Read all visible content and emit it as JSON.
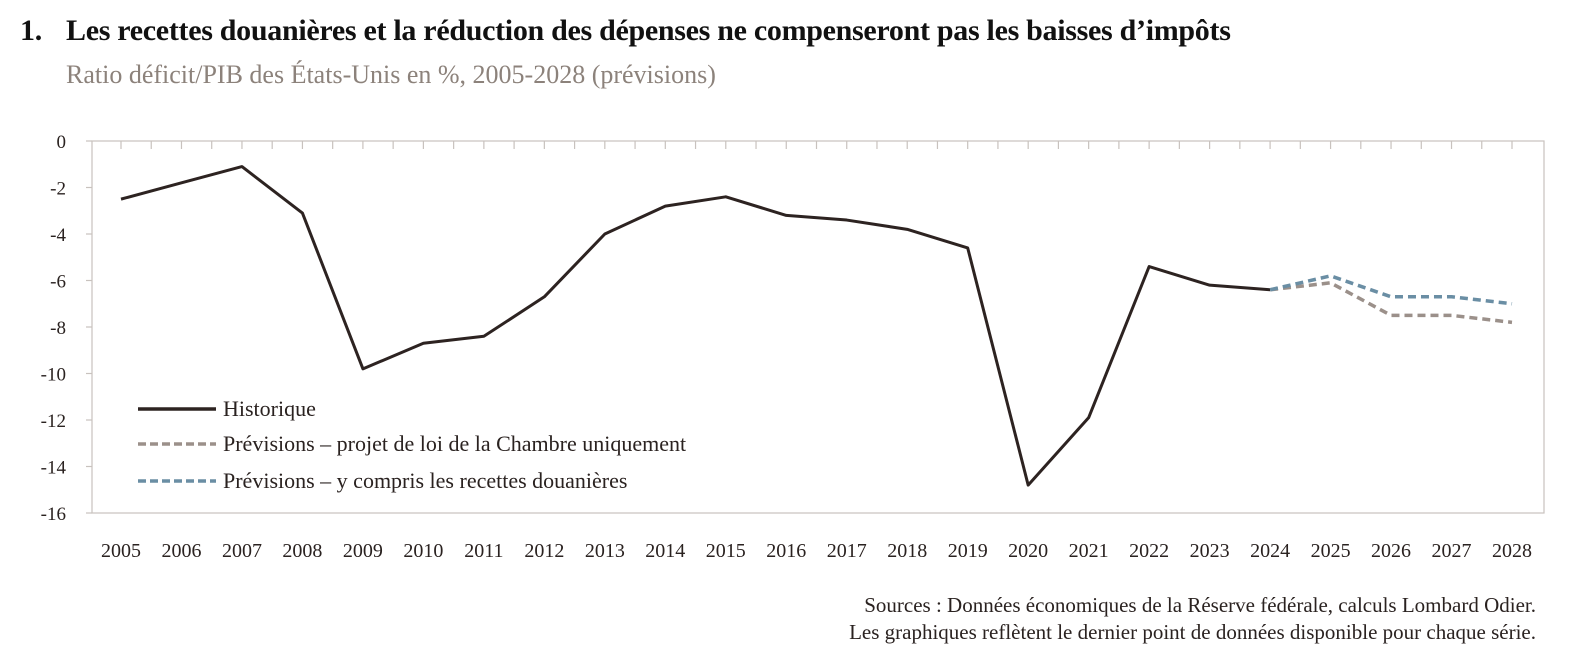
{
  "header": {
    "number": "1.",
    "title": "Les recettes douanières et la réduction des dépenses ne compenseront pas les baisses d’impôts",
    "subtitle": "Ratio déficit/PIB des États-Unis en %, 2005-2028 (prévisions)"
  },
  "footnote": {
    "line1": "Sources : Données économiques de la Réserve fédérale, calculs Lombard Odier.",
    "line2": "Les graphiques reflètent le dernier point de données disponible pour chaque série."
  },
  "chart_data": {
    "type": "line",
    "title": "Les recettes douanières et la réduction des dépenses ne compenseront pas les baisses d’impôts",
    "subtitle": "Ratio déficit/PIB des États-Unis en %, 2005-2028 (prévisions)",
    "xlabel": "",
    "ylabel": "",
    "ylim": [
      -16,
      0
    ],
    "yticks": [
      0,
      -2,
      -4,
      -6,
      -8,
      -10,
      -12,
      -14,
      -16
    ],
    "ytick_labels": [
      "0",
      "-2",
      "-4",
      "-6",
      "-8",
      "-10",
      "-12",
      "-14",
      "-16"
    ],
    "x": [
      "2005",
      "2006",
      "2007",
      "2008",
      "2009",
      "2010",
      "2011",
      "2012",
      "2013",
      "2014",
      "2015",
      "2016",
      "2017",
      "2018",
      "2019",
      "2020",
      "2021",
      "2022",
      "2023",
      "2024",
      "2025",
      "2026",
      "2027",
      "2028"
    ],
    "grid": false,
    "legend_position": "bottom-left",
    "series": [
      {
        "name": "Historique",
        "style": "solid",
        "color": "#2d2321",
        "x": [
          "2005",
          "2006",
          "2007",
          "2008",
          "2009",
          "2010",
          "2011",
          "2012",
          "2013",
          "2014",
          "2015",
          "2016",
          "2017",
          "2018",
          "2019",
          "2020",
          "2021",
          "2022",
          "2023",
          "2024"
        ],
        "values": [
          -2.5,
          -1.8,
          -1.1,
          -3.1,
          -9.8,
          -8.7,
          -8.4,
          -6.7,
          -4.0,
          -2.8,
          -2.4,
          -3.2,
          -3.4,
          -3.8,
          -4.6,
          -14.8,
          -11.9,
          -5.4,
          -6.2,
          -6.4
        ]
      },
      {
        "name": "Prévisions – projet de loi de la Chambre uniquement",
        "style": "dashed",
        "color": "#9b908a",
        "x": [
          "2024",
          "2025",
          "2026",
          "2027",
          "2028"
        ],
        "values": [
          -6.4,
          -6.1,
          -7.5,
          -7.5,
          -7.8
        ]
      },
      {
        "name": "Prévisions – y compris les recettes douanières",
        "style": "dashed",
        "color": "#6a8ea4",
        "x": [
          "2024",
          "2025",
          "2026",
          "2027",
          "2028"
        ],
        "values": [
          -6.4,
          -5.8,
          -6.7,
          -6.7,
          -7.0
        ]
      }
    ]
  }
}
